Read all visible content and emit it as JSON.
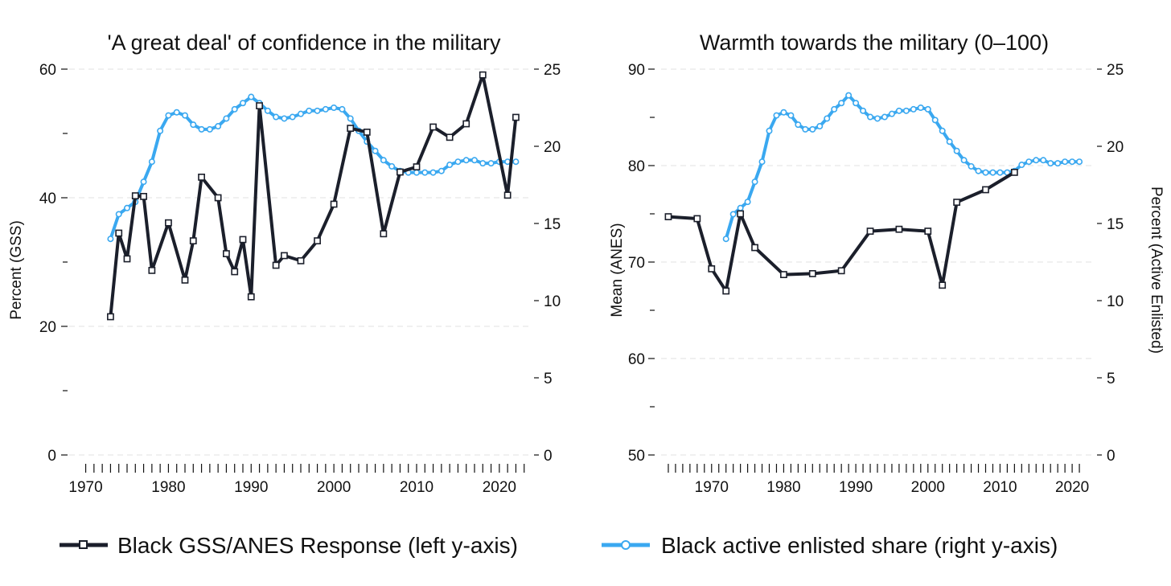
{
  "legend": {
    "black_label": "Black GSS/ANES Response (left y-axis)",
    "blue_label": "Black active enlisted share (right y-axis)"
  },
  "colors": {
    "black": "#1b1f2b",
    "blue": "#3aa8f0"
  },
  "chart_data": [
    {
      "type": "line",
      "title": "'A great deal' of confidence in the military",
      "ylabel_left": "Percent (GSS)",
      "ylabel_right": "",
      "ylim_left": [
        0,
        60
      ],
      "ylim_right": [
        0,
        25
      ],
      "xlim": [
        1968,
        2024
      ],
      "left_ticks": [
        0,
        20,
        40,
        60
      ],
      "left_minor_ticks": [
        10,
        30,
        50
      ],
      "right_ticks": [
        0,
        5,
        10,
        15,
        20,
        25
      ],
      "x_ticks": [
        1970,
        1980,
        1990,
        2000,
        2010,
        2020
      ],
      "x_minor_range": [
        1970,
        2023
      ],
      "grid": true,
      "series": [
        {
          "name": "Black GSS/ANES Response (left y-axis)",
          "axis": "left",
          "marker": "square",
          "x": [
            1973,
            1974,
            1975,
            1976,
            1977,
            1978,
            1980,
            1982,
            1983,
            1984,
            1986,
            1987,
            1988,
            1989,
            1990,
            1991,
            1993,
            1994,
            1996,
            1998,
            2000,
            2002,
            2004,
            2006,
            2008,
            2010,
            2012,
            2014,
            2016,
            2018,
            2021,
            2022
          ],
          "y": [
            21.5,
            34.5,
            30.5,
            40.3,
            40.2,
            28.7,
            36.1,
            27.2,
            33.3,
            43.2,
            40.0,
            31.3,
            28.5,
            33.5,
            24.6,
            54.3,
            29.5,
            31.0,
            30.2,
            33.3,
            39.0,
            50.8,
            50.2,
            34.4,
            44.0,
            44.8,
            51.0,
            49.4,
            51.5,
            59.1,
            40.4,
            52.5
          ]
        },
        {
          "name": "Black active enlisted share (right y-axis)",
          "axis": "right",
          "marker": "circle",
          "x": [
            1973,
            1974,
            1975,
            1976,
            1977,
            1978,
            1979,
            1980,
            1981,
            1982,
            1983,
            1984,
            1985,
            1986,
            1987,
            1988,
            1989,
            1990,
            1991,
            1992,
            1993,
            1994,
            1995,
            1996,
            1997,
            1998,
            1999,
            2000,
            2001,
            2002,
            2003,
            2004,
            2005,
            2006,
            2007,
            2008,
            2009,
            2010,
            2011,
            2012,
            2013,
            2014,
            2015,
            2016,
            2017,
            2018,
            2019,
            2020,
            2021,
            2022
          ],
          "y": [
            14.0,
            15.6,
            16.0,
            16.4,
            17.7,
            19.0,
            21.0,
            22.0,
            22.2,
            22.0,
            21.4,
            21.1,
            21.1,
            21.3,
            21.8,
            22.4,
            22.8,
            23.2,
            22.8,
            22.3,
            21.9,
            21.8,
            21.9,
            22.1,
            22.3,
            22.3,
            22.4,
            22.5,
            22.4,
            21.8,
            21.0,
            20.3,
            19.7,
            19.1,
            18.7,
            18.4,
            18.3,
            18.3,
            18.3,
            18.3,
            18.4,
            18.8,
            19.0,
            19.1,
            19.1,
            18.9,
            18.9,
            19.0,
            19.0,
            19.0
          ]
        }
      ]
    },
    {
      "type": "line",
      "title": "Warmth towards the military (0–100)",
      "ylabel_left": "Mean (ANES)",
      "ylabel_right": "Percent (Active Enlisted)",
      "ylim_left": [
        50,
        90
      ],
      "ylim_right": [
        0,
        25
      ],
      "xlim": [
        1963,
        2023
      ],
      "left_ticks": [
        50,
        60,
        70,
        80,
        90
      ],
      "left_minor_ticks": [
        55,
        65,
        75,
        85
      ],
      "right_ticks": [
        0,
        5,
        10,
        15,
        20,
        25
      ],
      "x_ticks": [
        1970,
        1980,
        1990,
        2000,
        2010,
        2020
      ],
      "x_minor_range": [
        1964,
        2021
      ],
      "grid": true,
      "series": [
        {
          "name": "Black GSS/ANES Response (left y-axis)",
          "axis": "left",
          "marker": "square",
          "x": [
            1964,
            1968,
            1970,
            1972,
            1974,
            1976,
            1980,
            1984,
            1988,
            1992,
            1996,
            2000,
            2002,
            2004,
            2008,
            2012
          ],
          "y": [
            74.7,
            74.5,
            69.3,
            67.0,
            75.0,
            71.5,
            68.7,
            68.8,
            69.1,
            73.2,
            73.4,
            73.2,
            67.6,
            76.2,
            77.5,
            79.3
          ]
        },
        {
          "name": "Black active enlisted share (right y-axis)",
          "axis": "right",
          "marker": "circle",
          "x": [
            1972,
            1973,
            1974,
            1975,
            1976,
            1977,
            1978,
            1979,
            1980,
            1981,
            1982,
            1983,
            1984,
            1985,
            1986,
            1987,
            1988,
            1989,
            1990,
            1991,
            1992,
            1993,
            1994,
            1995,
            1996,
            1997,
            1998,
            1999,
            2000,
            2001,
            2002,
            2003,
            2004,
            2005,
            2006,
            2007,
            2008,
            2009,
            2010,
            2011,
            2012,
            2013,
            2014,
            2015,
            2016,
            2017,
            2018,
            2019,
            2020,
            2021
          ],
          "y": [
            14.0,
            15.6,
            16.0,
            16.4,
            17.7,
            19.0,
            21.0,
            22.0,
            22.2,
            22.0,
            21.4,
            21.1,
            21.1,
            21.3,
            21.8,
            22.4,
            22.8,
            23.3,
            22.8,
            22.3,
            21.9,
            21.8,
            21.9,
            22.1,
            22.3,
            22.3,
            22.4,
            22.5,
            22.4,
            21.7,
            21.0,
            20.3,
            19.7,
            19.1,
            18.7,
            18.4,
            18.3,
            18.3,
            18.3,
            18.3,
            18.4,
            18.8,
            19.0,
            19.1,
            19.1,
            18.9,
            18.9,
            19.0,
            19.0,
            19.0
          ]
        }
      ]
    }
  ]
}
